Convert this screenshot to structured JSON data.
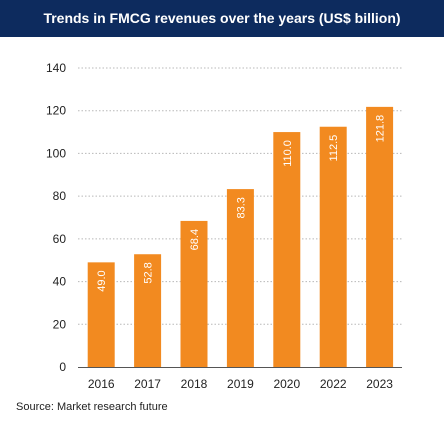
{
  "title": "Trends in FMCG revenues over the years (US$ billion)",
  "source": "Source: Market research future",
  "colors": {
    "title_bg": "#0d2b5e",
    "bar": "#f28a20",
    "grid": "#b8b8b8",
    "axis": "#555555"
  },
  "chart_data": {
    "type": "bar",
    "title": "Trends in FMCG revenues over the years (US$ billion)",
    "xlabel": "",
    "ylabel": "",
    "categories": [
      "2016",
      "2017",
      "2018",
      "2019",
      "2020",
      "2022",
      "2023"
    ],
    "values": [
      49.0,
      52.8,
      68.4,
      83.3,
      110.0,
      112.5,
      121.8
    ],
    "data_labels": [
      "49.0",
      "52.8",
      "68.4",
      "83.3",
      "110.0",
      "112.5",
      "121.8"
    ],
    "ylim": [
      0,
      140
    ],
    "yticks": [
      0,
      20,
      40,
      60,
      80,
      100,
      120,
      140
    ],
    "grid": true,
    "legend": "none"
  }
}
